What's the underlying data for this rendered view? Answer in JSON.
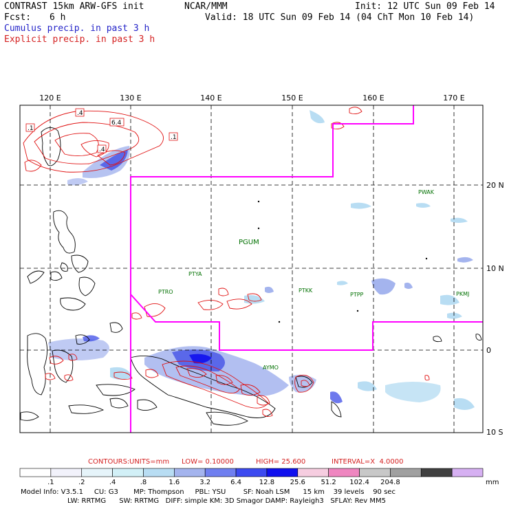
{
  "header": {
    "title": "CONTRAST 15km ARW-GFS init",
    "org": "NCAR/MMM",
    "init": "Init: 12 UTC Sun 09 Feb 14",
    "fcst_label": "Fcst:",
    "fcst_value": "6 h",
    "valid": "Valid: 18 UTC Sun 09 Feb 14 (04 ChT Mon 10 Feb 14)",
    "legend_cumulus": "Cumulus precip. in past 3 h",
    "legend_explicit": "Explicit precip. in past 3 h"
  },
  "map": {
    "lon_labels": [
      "120 E",
      "130 E",
      "140 E",
      "150 E",
      "160 E",
      "170 E"
    ],
    "lat_labels": [
      "20 N",
      "10 N",
      "0",
      "10 S"
    ],
    "stations": [
      {
        "id": "PWAK"
      },
      {
        "id": "PGUM"
      },
      {
        "id": "PTYA"
      },
      {
        "id": "PTRO"
      },
      {
        "id": "PTKK"
      },
      {
        "id": "PTPP"
      },
      {
        "id": "PKMJ"
      },
      {
        "id": "AYMO"
      }
    ],
    "contour_labels": [
      ".4",
      ".1",
      "6.4",
      ".4",
      ".1"
    ],
    "colors": {
      "boundary": "#ff00ff",
      "contour": "#e01010",
      "station": "#007000"
    }
  },
  "contours_info": {
    "label": "CONTOURS:",
    "units": "UNITS=mm",
    "low": "LOW= 0.10000",
    "high": "HIGH= 25.600",
    "interval": "INTERVAL=X  4.0000"
  },
  "colorbar": {
    "ticks": [
      ".1",
      ".2",
      ".4",
      ".8",
      "1.6",
      "3.2",
      "6.4",
      "12.8",
      "25.6",
      "51.2",
      "102.4",
      "204.8"
    ],
    "unit": "mm",
    "colors": [
      "#ffffff",
      "#f2f2fb",
      "#e6f4fa",
      "#d2f0f7",
      "#b8ddf3",
      "#a4b4ee",
      "#6f7ff0",
      "#3c4af0",
      "#1010ee",
      "#f6cde0",
      "#ef86c0",
      "#c8c8c8",
      "#a0a0a0",
      "#404040",
      "#d6b0f2"
    ]
  },
  "model_info": {
    "line1": "Model Info: V3.5.1     CU: G3       MP: Thompson     PBL: YSU        SF: Noah LSM      15 km    39 levels    90 sec",
    "line2": "LW: RRTMG      SW: RRTMG   DIFF: simple KM: 3D Smagor DAMP: Rayleigh3   SFLAY: Rev MM5"
  }
}
